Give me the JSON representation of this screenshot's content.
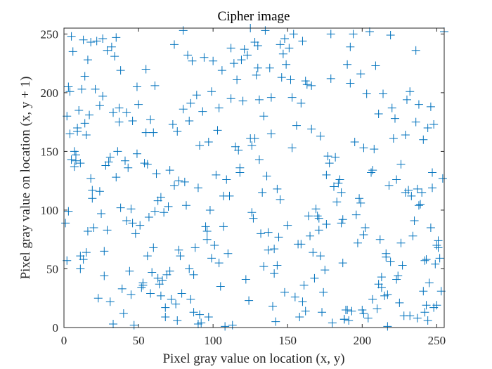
{
  "chart_data": {
    "type": "scatter",
    "title": "Cipher image",
    "x_label": "Pixel gray value on location (x, y)",
    "y_label": "Pixel gray value on location (x, y + 1)",
    "color": "#0072bd",
    "xlim": [
      0,
      255
    ],
    "ylim": [
      0,
      255
    ],
    "xticks": [
      0,
      50,
      100,
      150,
      200,
      250
    ],
    "yticks": [
      0,
      50,
      100,
      150,
      200,
      250
    ],
    "x": [
      12,
      87,
      143,
      201,
      34,
      176,
      229,
      65,
      112,
      250,
      8,
      154,
      97,
      183,
      42,
      219,
      130,
      71,
      245,
      3,
      58,
      191,
      26,
      137,
      208,
      79,
      162,
      240,
      15,
      104,
      47,
      226,
      121,
      187,
      68,
      9,
      252,
      149,
      35,
      96,
      173,
      214,
      53,
      128,
      5,
      238,
      84,
      199,
      31,
      160,
      107,
      246,
      62,
      180,
      18,
      141,
      222,
      90,
      39,
      166,
      115,
      201,
      74,
      23,
      233,
      139,
      56,
      188,
      100,
      11,
      170,
      248,
      44,
      125,
      210,
      81,
      152,
      29,
      195,
      66,
      6,
      118,
      243,
      93,
      157,
      38,
      205,
      134,
      76,
      228,
      14,
      181,
      49,
      110,
      253,
      159,
      20,
      86,
      217,
      131,
      61,
      193,
      37,
      147,
      2,
      223,
      99,
      168,
      51,
      241,
      124,
      13,
      186,
      77,
      211,
      142,
      28,
      235,
      106,
      59,
      174,
      4,
      198,
      88,
      151,
      33,
      230,
      117,
      72,
      206,
      16,
      163,
      243,
      46,
      133,
      91,
      219,
      25,
      178,
      64,
      138,
      251,
      10,
      102,
      189,
      55,
      227,
      82,
      145,
      1,
      215,
      120,
      41,
      172,
      94,
      237,
      19,
      156,
      69,
      203,
      109,
      32,
      249,
      127,
      75,
      192,
      7,
      165,
      221,
      52,
      135,
      98,
      244,
      17,
      184,
      60,
      146,
      213,
      36,
      113,
      80,
      231,
      158,
      22,
      197,
      126,
      45,
      254,
      89,
      171,
      11,
      209,
      63,
      140,
      103,
      236,
      27,
      182,
      57,
      148,
      216,
      85,
      30,
      161,
      239,
      119,
      48,
      200,
      73,
      136,
      3,
      224,
      95,
      179,
      40,
      153,
      111,
      242,
      24,
      190,
      67,
      207,
      129,
      9,
      175,
      92,
      247,
      50,
      144,
      218,
      35,
      105,
      166,
      78,
      232,
      21,
      196,
      54,
      122,
      255,
      14,
      150,
      83,
      225,
      43,
      187,
      116,
      70,
      204,
      2,
      167,
      237,
      97,
      130,
      58,
      212,
      26,
      177,
      108,
      246,
      63,
      139,
      19,
      194,
      87,
      232,
      46,
      155,
      123,
      5,
      220,
      71,
      169,
      250,
      38,
      101,
      185,
      15,
      143,
      76,
      229,
      132,
      29,
      201,
      53,
      164,
      242,
      84,
      114,
      11,
      176,
      61,
      217,
      42,
      148,
      236,
      99,
      24,
      188,
      131,
      7,
      213,
      74,
      160,
      251,
      37,
      126,
      190,
      56,
      104,
      234,
      16,
      172,
      90,
      145,
      223,
      49,
      118,
      202,
      80,
      31,
      244,
      137,
      65,
      179,
      8,
      211,
      96,
      153,
      247,
      27,
      125,
      192,
      68,
      18,
      159,
      238,
      85,
      134,
      45,
      207,
      112,
      13,
      171,
      248,
      91,
      55,
      199,
      141,
      33,
      226,
      77,
      162,
      4,
      186,
      128,
      241,
      60,
      107,
      216
    ],
    "values": [
      203,
      45,
      118,
      12,
      231,
      88,
      164,
      27,
      195,
      70,
      142,
      250,
      9,
      107,
      183,
      56,
      221,
      134,
      38,
      99,
      177,
      6,
      246,
      81,
      152,
      29,
      210,
      115,
      64,
      187,
      2,
      139,
      237,
      92,
      17,
      170,
      59,
      224,
      128,
      75,
      13,
      199,
      36,
      161,
      248,
      104,
      50,
      216,
      145,
      22,
      86,
      188,
      131,
      4,
      243,
      67,
      178,
      119,
      33,
      206,
      154,
      79,
      241,
      25,
      112,
      196,
      61,
      7,
      227,
      140,
      95,
      173,
      48,
      255,
      16,
      124,
      211,
      83,
      158,
      40,
      235,
      136,
      19,
      184,
      71,
      102,
      252,
      52,
      167,
      10,
      214,
      120,
      148,
      63,
      31,
      191,
      85,
      227,
      1,
      143,
      99,
      14,
      175,
      233,
      57,
      126,
      201,
      42,
      87,
      160,
      23,
      245,
      115,
      66,
      182,
      5,
      138,
      91,
      219,
      47,
      30,
      165,
      110,
      68,
      238,
      3,
      194,
      151,
      24,
      132,
      82,
      207,
      58,
      176,
      115,
      11,
      249,
      97,
      140,
      37,
      221,
      74,
      185,
      130,
      15,
      166,
      53,
      104,
      241,
      89,
      27,
      193,
      142,
      61,
      230,
      8,
      117,
      172,
      45,
      199,
      126,
      239,
      54,
      93,
      20,
      208,
      137,
      78,
      161,
      34,
      253,
      100,
      6,
      181,
      123,
      68,
      213,
      43,
      150,
      2,
      186,
      117,
      9,
      244,
      72,
      155,
      28,
      127,
      198,
      83,
      50,
      223,
      108,
      18,
      168,
      236,
      65,
      145,
      94,
      30,
      60,
      191,
      141,
      36,
      105,
      228,
      80,
      15,
      173,
      129,
      205,
      44,
      86,
      250,
      12,
      153,
      112,
      57,
      189,
      224,
      98,
      24,
      215,
      167,
      49,
      4,
      132,
      190,
      77,
      121,
      247,
      35,
      169,
      61,
      10,
      203,
      96,
      140,
      41,
      252,
      174,
      87,
      232,
      21,
      136,
      55,
      211,
      103,
      8,
      180,
      64,
      118,
      158,
      240,
      29,
      75,
      197,
      146,
      1,
      85,
      42,
      165,
      110,
      250,
      13,
      201,
      89,
      26,
      232,
      143,
      187,
      48,
      101,
      19,
      219,
      70,
      126,
      164,
      53,
      6,
      115,
      80,
      236,
      153,
      38,
      95,
      13,
      176,
      225,
      61,
      130,
      206,
      28,
      91,
      246,
      175,
      59,
      116,
      7,
      194,
      150,
      34,
      121,
      244,
      68,
      187,
      98,
      15,
      139,
      55,
      78,
      228,
      163,
      3,
      109,
      41,
      205,
      132,
      85,
      253,
      22,
      170,
      66,
      111,
      212,
      147,
      37,
      82,
      196,
      119,
      44,
      161,
      239,
      9,
      127,
      71,
      190,
      24,
      180,
      101,
      134,
      238,
      58,
      93,
      17,
      155,
      220,
      106,
      46,
      183,
      72,
      125,
      14,
      201,
      89,
      243,
      31,
      166,
      112,
      63
    ]
  }
}
